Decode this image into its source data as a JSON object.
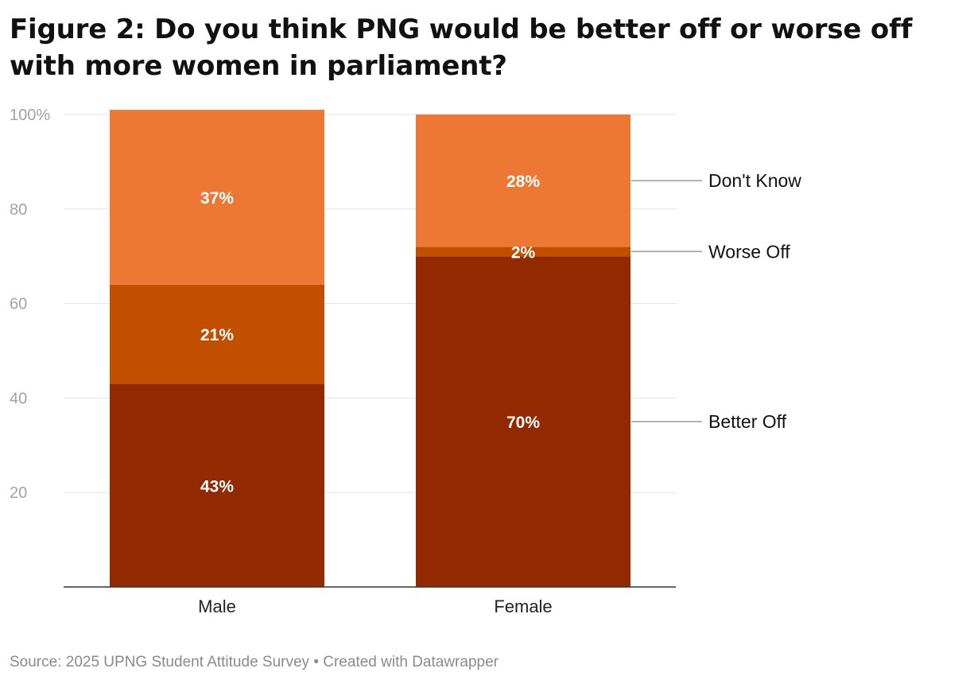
{
  "chart_data": {
    "type": "bar",
    "stacked": true,
    "title": "Figure 2: Do you think PNG would be better off or worse off with more women in parliament?",
    "categories": [
      "Male",
      "Female"
    ],
    "series": [
      {
        "name": "Better Off",
        "values": [
          43,
          70
        ],
        "labels": [
          "43%",
          "70%"
        ],
        "color": "#922900"
      },
      {
        "name": "Worse Off",
        "values": [
          21,
          2
        ],
        "labels": [
          "21%",
          "2%"
        ],
        "color": "#c24f00"
      },
      {
        "name": "Don't Know",
        "values": [
          37,
          28
        ],
        "labels": [
          "37%",
          "28%"
        ],
        "color": "#ec7833"
      }
    ],
    "y_ticks": [
      20,
      40,
      60,
      80,
      100
    ],
    "y_tick_labels": [
      "20",
      "40",
      "60",
      "80",
      "100%"
    ],
    "ylim": [
      0,
      100
    ],
    "grid": true,
    "legend_position": "right, inline labels",
    "xlabel": "",
    "ylabel": ""
  },
  "footer": {
    "source": "Source: 2025 UPNG Student Attitude Survey • Created with Datawrapper"
  }
}
